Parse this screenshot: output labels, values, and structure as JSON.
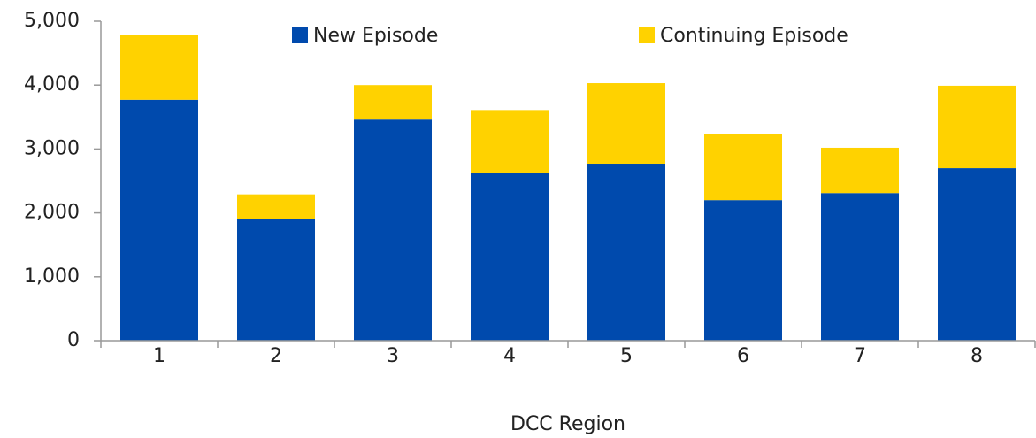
{
  "chart_data": {
    "type": "stacked_bar",
    "x_label": "DCC Region",
    "categories": [
      "1",
      "2",
      "3",
      "4",
      "5",
      "6",
      "7",
      "8"
    ],
    "series": [
      {
        "name": "New Episode",
        "color": "#004aad",
        "values": [
          3770,
          1910,
          3460,
          2620,
          2770,
          2200,
          2310,
          2700
        ]
      },
      {
        "name": "Continuing Episode",
        "color": "#ffd200",
        "values": [
          1020,
          380,
          540,
          990,
          1260,
          1040,
          710,
          1290
        ]
      }
    ],
    "ylim": [
      0,
      5000
    ],
    "yticks": [
      0,
      {
        "value": 1000,
        "label": "1,000"
      },
      {
        "value": 2000,
        "label": "2,000"
      },
      {
        "value": 3000,
        "label": "3,000"
      },
      {
        "value": 4000,
        "label": "4,000"
      },
      {
        "value": 5000,
        "label": "5,000"
      }
    ],
    "grid": false,
    "legend": "top"
  }
}
